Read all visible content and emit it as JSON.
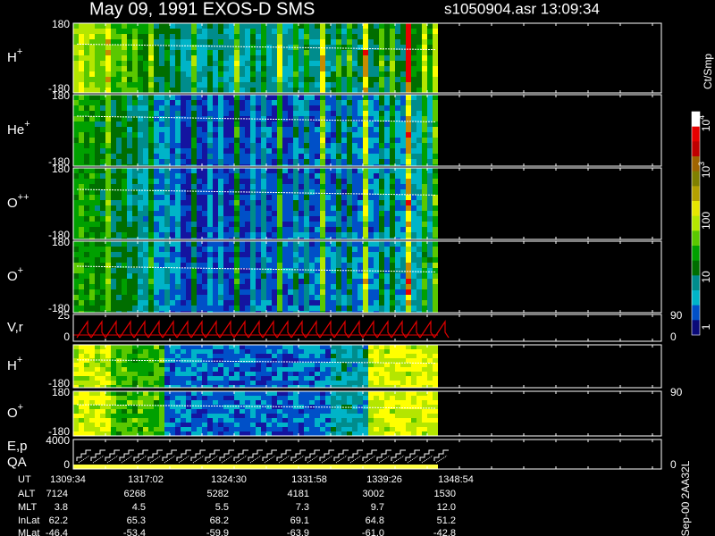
{
  "header": {
    "title": "May 09, 1991   EXOS-D SMS",
    "file_time": "s1050904.asr  13:09:34"
  },
  "panels": [
    {
      "label": "H",
      "sup": "+",
      "top": "180",
      "bottom": "-180"
    },
    {
      "label": "He",
      "sup": "+",
      "top": "180",
      "bottom": "-180"
    },
    {
      "label": "O",
      "sup": "++",
      "top": "180",
      "bottom": "-180"
    },
    {
      "label": "O",
      "sup": "+",
      "top": "180",
      "bottom": "-180"
    },
    {
      "label": "V,r",
      "top": "25",
      "bottom": "0",
      "right_top": "90",
      "right_bottom": "0"
    },
    {
      "label": "H",
      "sup": "+",
      "bottom": "-180"
    },
    {
      "label": "O",
      "sup": "+",
      "top": "180",
      "bottom": "-180",
      "right_top": "90"
    },
    {
      "label": "E,p",
      "label2": "QA",
      "top": "4000",
      "bottom": "0",
      "right_bottom": "0"
    }
  ],
  "colorbar": {
    "unit": "Ct/Smp",
    "ticks": [
      {
        "base": "10",
        "sup": "4"
      },
      {
        "base": "10",
        "sup": "3"
      },
      {
        "base": "100"
      },
      {
        "base": "10"
      },
      {
        "base": "1"
      }
    ]
  },
  "table": {
    "rows": [
      {
        "label": "UT",
        "values": [
          "1309:34",
          "1317:02",
          "1324:30",
          "1331:58",
          "1339:26",
          "1348:54"
        ]
      },
      {
        "label": "ALT",
        "values": [
          "7124",
          "6268",
          "5282",
          "4181",
          "3002",
          "1530"
        ]
      },
      {
        "label": "MLT",
        "values": [
          "3.8",
          "4.5",
          "5.5",
          "7.3",
          "9.7",
          "12.0"
        ]
      },
      {
        "label": "InLat",
        "values": [
          "62.2",
          "65.3",
          "68.2",
          "69.1",
          "64.8",
          "51.2"
        ]
      },
      {
        "label": "MLat",
        "values": [
          "-46.4",
          "-53.4",
          "-59.9",
          "-63.9",
          "-61.0",
          "-42.8"
        ]
      }
    ]
  },
  "footer_note": "Sep-00  2AA32L"
}
